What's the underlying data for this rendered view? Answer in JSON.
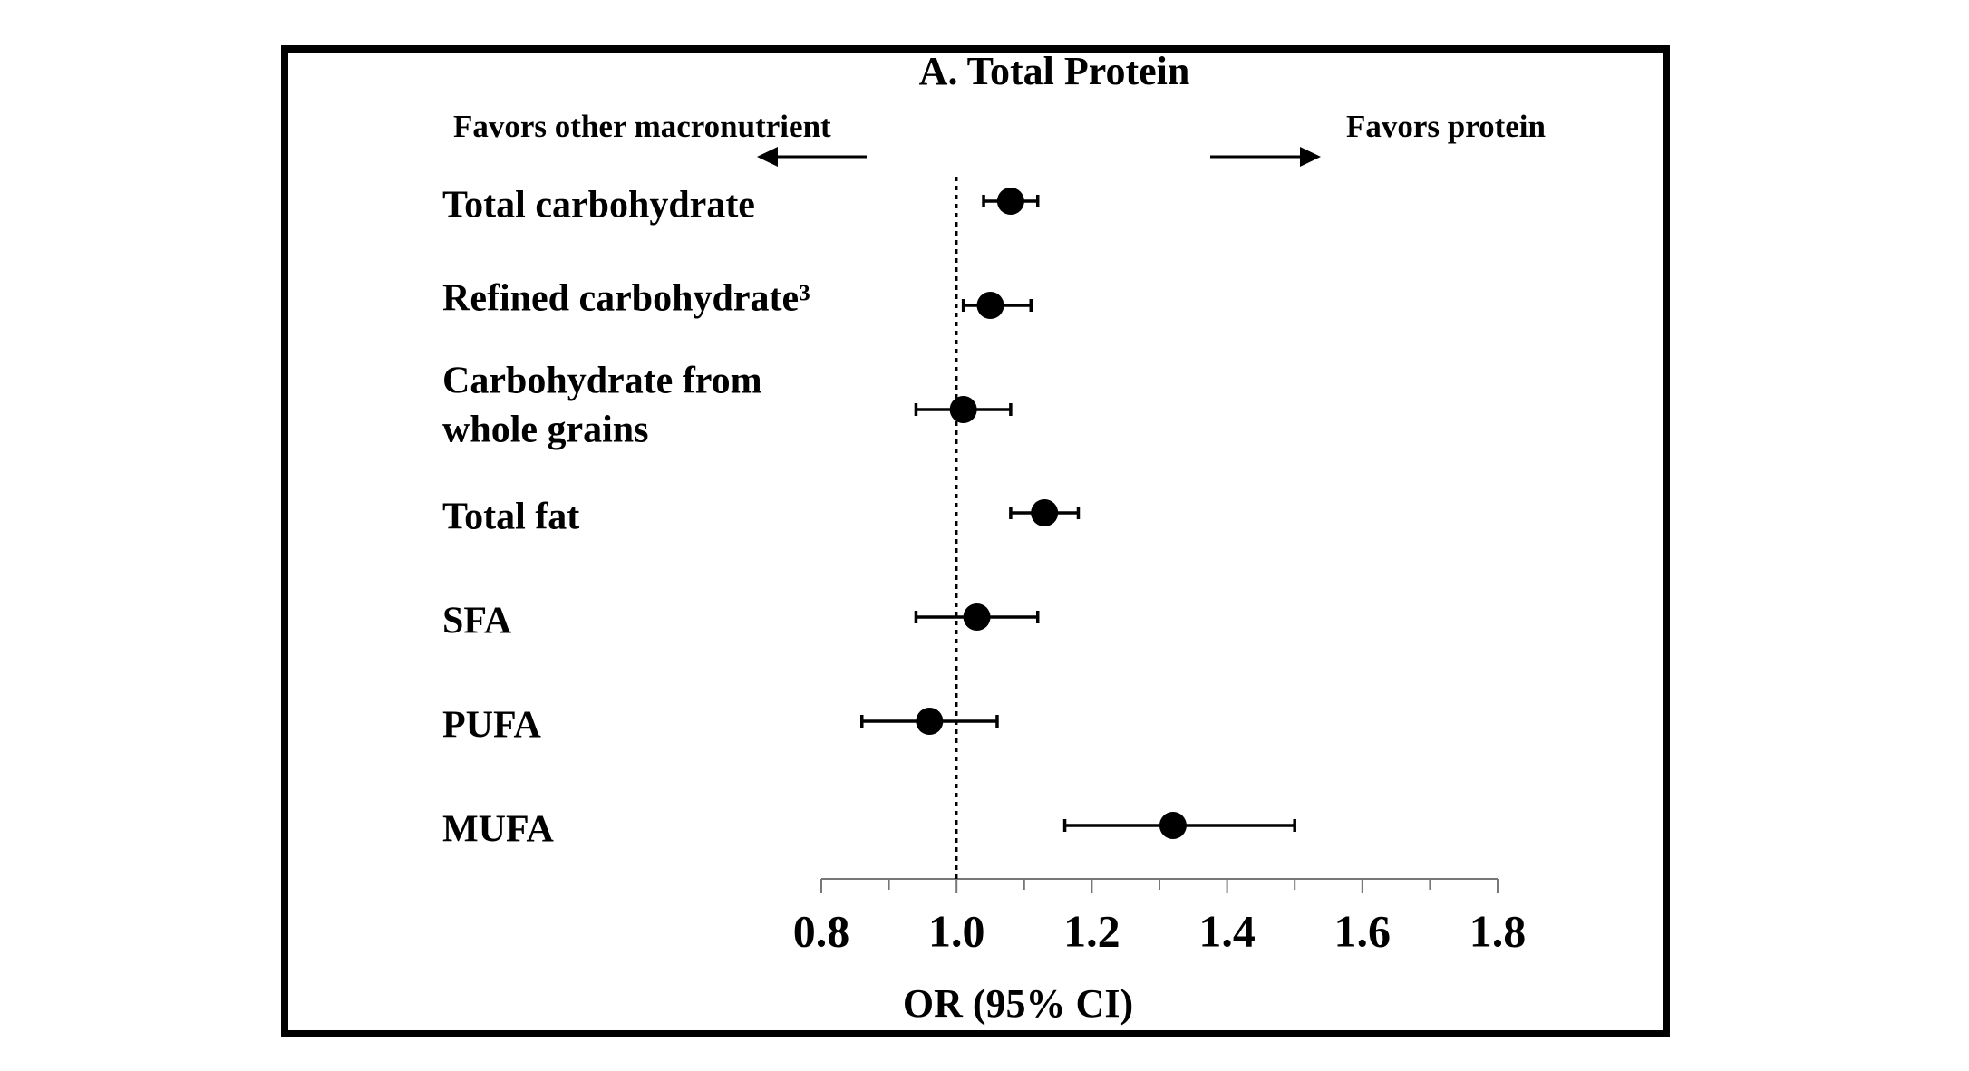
{
  "chart_data": {
    "type": "forest",
    "title": "A.  Total Protein",
    "annotations": [
      "Favors other macronutrient",
      "Favors protein"
    ],
    "xlabel": "OR (95% CI)",
    "categories": [
      "Total carbohydrate",
      "Refined carbohydrate³",
      [
        "Carbohydrate from",
        "whole grains"
      ],
      "Total fat",
      "SFA",
      "PUFA",
      "MUFA"
    ],
    "values": [
      1.08,
      1.05,
      1.01,
      1.13,
      1.03,
      0.96,
      1.32
    ],
    "lower": [
      1.04,
      1.01,
      0.94,
      1.08,
      0.94,
      0.86,
      1.16
    ],
    "upper": [
      1.12,
      1.11,
      1.08,
      1.18,
      1.12,
      1.06,
      1.5
    ],
    "color": "#000000",
    "xlim": [
      0.8,
      1.8
    ],
    "xticks": [
      0.8,
      {
        "value": 1,
        "label": "1.0"
      },
      1.2,
      1.4,
      1.6,
      1.8
    ],
    "xminorticks": [
      0.9,
      1.1,
      1.3,
      1.5,
      1.7
    ],
    "reference_line": 1
  }
}
